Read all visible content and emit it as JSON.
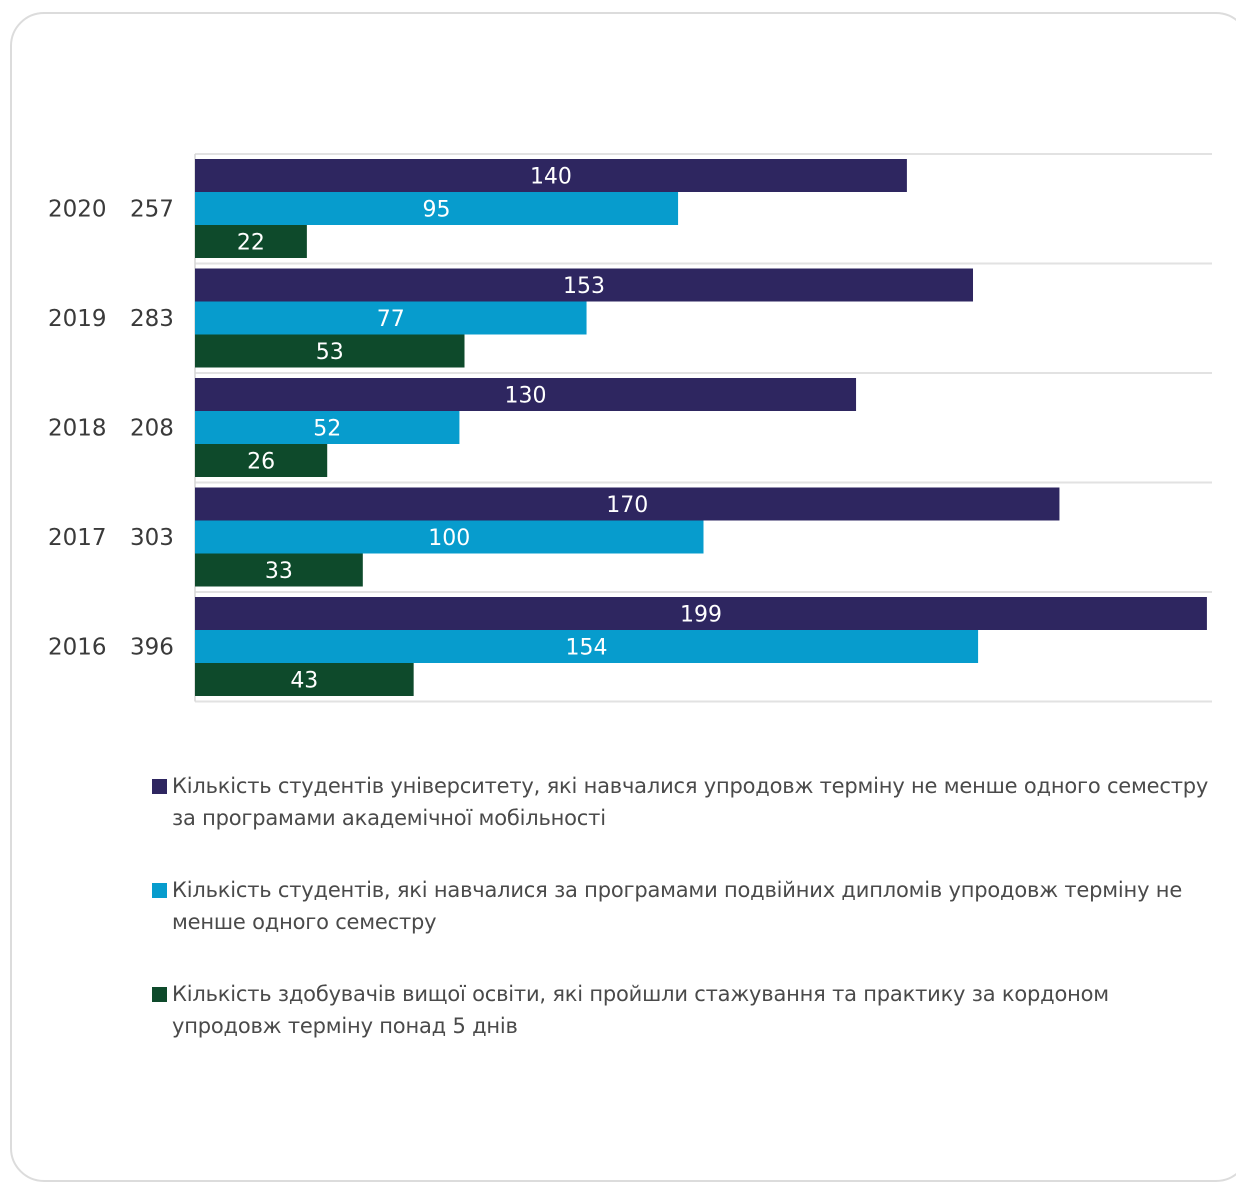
{
  "chart_data": {
    "type": "bar",
    "orientation": "horizontal",
    "categories": [
      "2020",
      "2019",
      "2018",
      "2017",
      "2016"
    ],
    "category_totals": [
      "257",
      "283",
      "208",
      "303",
      "396"
    ],
    "series": [
      {
        "name": "Кількість студентів університету, які навчалися упродовж терміну не менше одного семестру за програмами академічної мобільності",
        "color": "#2e2660",
        "values": [
          140,
          153,
          130,
          170,
          199
        ]
      },
      {
        "name": "Кількість студентів, які навчалися за програмами подвійних дипломів упродовж терміну не менше одного семестру",
        "color": "#079ccd",
        "values": [
          95,
          77,
          52,
          100,
          154
        ]
      },
      {
        "name": "Кількість здобувачів вищої освіти, які пройшли стажування та практику за кордоном упродовж терміну понад 5 днів",
        "color": "#0e4a2b",
        "values": [
          22,
          53,
          26,
          33,
          43
        ]
      }
    ],
    "xlim": [
      0,
      200
    ],
    "grid": true,
    "legend_position": "bottom",
    "data_labels": true
  }
}
